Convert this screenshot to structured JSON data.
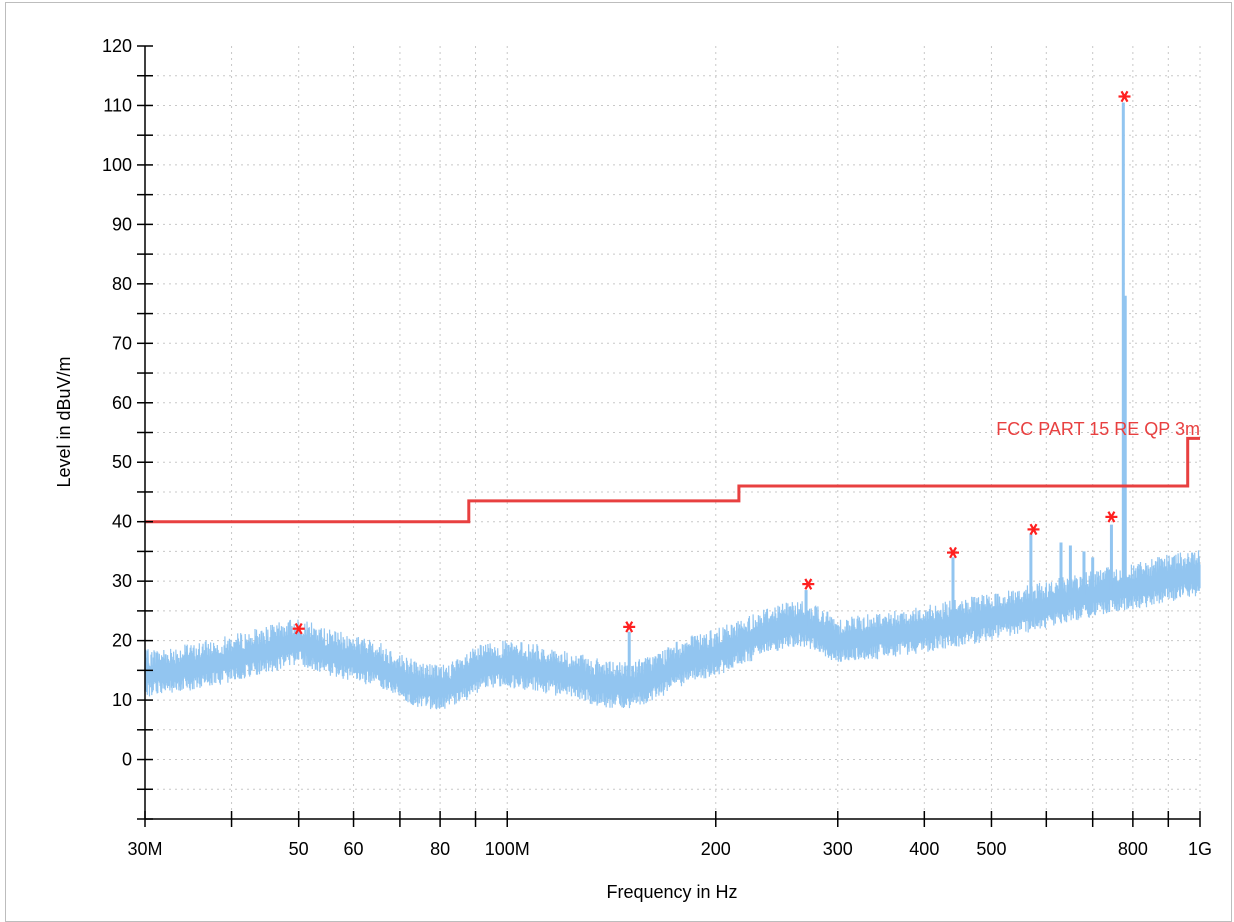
{
  "chart_data": {
    "type": "line",
    "xlabel": "Frequency in Hz",
    "ylabel": "Level in dBuV/m",
    "x_scale": "log",
    "xlim": [
      30000000,
      1000000000
    ],
    "ylim": [
      -10,
      120
    ],
    "grid": true,
    "y_ticks": [
      0,
      10,
      20,
      30,
      40,
      50,
      60,
      70,
      80,
      90,
      100,
      110,
      120
    ],
    "x_tick_labels": [
      {
        "value": 30000000,
        "label": "30M"
      },
      {
        "value": 50000000,
        "label": "50"
      },
      {
        "value": 60000000,
        "label": "60"
      },
      {
        "value": 80000000,
        "label": "80"
      },
      {
        "value": 100000000,
        "label": "100M"
      },
      {
        "value": 200000000,
        "label": "200"
      },
      {
        "value": 300000000,
        "label": "300"
      },
      {
        "value": 400000000,
        "label": "400"
      },
      {
        "value": 500000000,
        "label": "500"
      },
      {
        "value": 800000000,
        "label": "800"
      },
      {
        "value": 1000000000,
        "label": "1G"
      }
    ],
    "x_minor_ticks": [
      40000000,
      70000000,
      90000000,
      600000000,
      700000000,
      900000000
    ],
    "limit_line": {
      "name": "FCC PART 15 RE QP 3m",
      "color": "#e84040",
      "points": [
        [
          30000000,
          40
        ],
        [
          88000000,
          40
        ],
        [
          88000000,
          43.5
        ],
        [
          216000000,
          43.5
        ],
        [
          216000000,
          46
        ],
        [
          960000000,
          46
        ],
        [
          960000000,
          54
        ],
        [
          1000000000,
          54
        ]
      ]
    },
    "spectrum": {
      "color": "#92c5f0",
      "baseline": [
        [
          30000000,
          14.5
        ],
        [
          35000000,
          15.5
        ],
        [
          40000000,
          17
        ],
        [
          45000000,
          18.5
        ],
        [
          50000000,
          20
        ],
        [
          55000000,
          18
        ],
        [
          60000000,
          17
        ],
        [
          65000000,
          16
        ],
        [
          70000000,
          14
        ],
        [
          75000000,
          12.5
        ],
        [
          80000000,
          12
        ],
        [
          85000000,
          13
        ],
        [
          90000000,
          15
        ],
        [
          95000000,
          16
        ],
        [
          100000000,
          16
        ],
        [
          110000000,
          15.5
        ],
        [
          120000000,
          14.5
        ],
        [
          130000000,
          13.5
        ],
        [
          140000000,
          12.5
        ],
        [
          150000000,
          12.5
        ],
        [
          160000000,
          13.5
        ],
        [
          170000000,
          15
        ],
        [
          180000000,
          16.5
        ],
        [
          200000000,
          18
        ],
        [
          220000000,
          20
        ],
        [
          240000000,
          22
        ],
        [
          260000000,
          23
        ],
        [
          280000000,
          22
        ],
        [
          300000000,
          20
        ],
        [
          350000000,
          21
        ],
        [
          400000000,
          22
        ],
        [
          450000000,
          23
        ],
        [
          500000000,
          24
        ],
        [
          600000000,
          26
        ],
        [
          700000000,
          28
        ],
        [
          800000000,
          29
        ],
        [
          900000000,
          30.5
        ],
        [
          1000000000,
          31.5
        ]
      ],
      "spikes": [
        [
          50000000,
          21
        ],
        [
          150000000,
          21.5
        ],
        [
          270000000,
          28.5
        ],
        [
          440000000,
          34
        ],
        [
          570000000,
          38
        ],
        [
          630000000,
          36.5
        ],
        [
          650000000,
          36
        ],
        [
          680000000,
          35
        ],
        [
          700000000,
          34
        ],
        [
          745000000,
          39.5
        ],
        [
          775000000,
          110.5
        ],
        [
          780000000,
          78
        ]
      ]
    },
    "peak_markers": {
      "color": "#ff2020",
      "points": [
        [
          50000000,
          22
        ],
        [
          150000000,
          22.3
        ],
        [
          272000000,
          29.5
        ],
        [
          440000000,
          34.8
        ],
        [
          575000000,
          38.7
        ],
        [
          745000000,
          40.8
        ],
        [
          778000000,
          111.5
        ]
      ]
    }
  }
}
